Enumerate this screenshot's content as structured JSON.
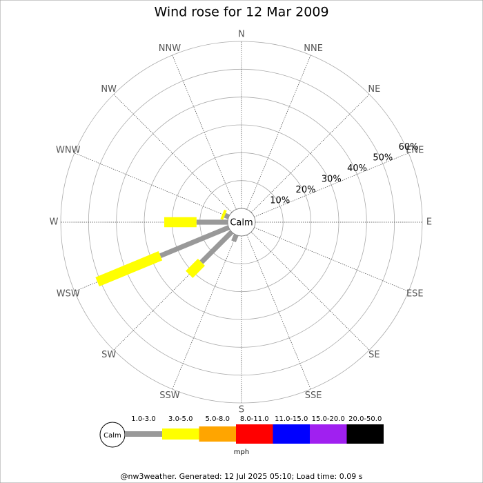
{
  "chart_data": {
    "type": "windrose",
    "title": "Wind rose for 12 Mar 2009",
    "directions": [
      "N",
      "NNE",
      "NE",
      "ENE",
      "E",
      "ESE",
      "SE",
      "SSE",
      "S",
      "SSW",
      "SW",
      "WSW",
      "W",
      "WNW",
      "NW",
      "NNW"
    ],
    "series": [
      {
        "name": "1.0-3.0",
        "color": "#999999",
        "values": [
          0,
          0,
          0,
          0,
          0,
          0,
          0,
          0,
          0,
          2.5,
          15.4,
          26.6,
          11.2,
          1.5,
          0,
          0
        ]
      },
      {
        "name": "3.0-5.0",
        "color": "#ffff00",
        "values": [
          0,
          0,
          0,
          0,
          0,
          0,
          0,
          0,
          0,
          0,
          6.2,
          24.5,
          11.6,
          1.0,
          0,
          0
        ]
      },
      {
        "name": "5.0-8.0",
        "color": "#ffa500",
        "values": [
          0,
          0,
          0,
          0,
          0,
          0,
          0,
          0,
          0,
          0,
          0,
          0,
          0,
          0,
          0,
          0
        ]
      },
      {
        "name": "8.0-11.0",
        "color": "#ff0000",
        "values": [
          0,
          0,
          0,
          0,
          0,
          0,
          0,
          0,
          0,
          0,
          0,
          0,
          0,
          0,
          0,
          0
        ]
      },
      {
        "name": "11.0-15.0",
        "color": "#0000ff",
        "values": [
          0,
          0,
          0,
          0,
          0,
          0,
          0,
          0,
          0,
          0,
          0,
          0,
          0,
          0,
          0,
          0
        ]
      },
      {
        "name": "15.0-20.0",
        "color": "#a020f0",
        "values": [
          0,
          0,
          0,
          0,
          0,
          0,
          0,
          0,
          0,
          0,
          0,
          0,
          0,
          0,
          0,
          0
        ]
      },
      {
        "name": "20.0-50.0",
        "color": "#000000",
        "values": [
          0,
          0,
          0,
          0,
          0,
          0,
          0,
          0,
          0,
          0,
          0,
          0,
          0,
          0,
          0,
          0
        ]
      }
    ],
    "rlim": [
      0,
      60
    ],
    "rticks": [
      {
        "value": 10,
        "label": "10%"
      },
      {
        "value": 20,
        "label": "20%"
      },
      {
        "value": 30,
        "label": "30%"
      },
      {
        "value": 40,
        "label": "40%"
      },
      {
        "value": 50,
        "label": "50%"
      },
      {
        "value": 60,
        "label": "60%"
      }
    ],
    "calm_label": "Calm",
    "unit": "mph"
  },
  "footer": "@nw3weather. Generated: 12 Jul 2025 05:10; Load time: 0.09 s"
}
